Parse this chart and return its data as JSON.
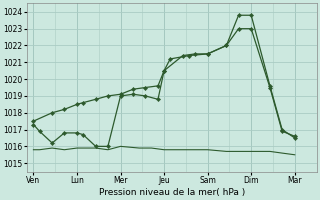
{
  "background_color": "#cce8df",
  "grid_color": "#aaccc4",
  "line_color": "#2d5a2d",
  "title": "Pression niveau de la mer( hPa )",
  "ylim": [
    1014.5,
    1024.5
  ],
  "yticks": [
    1015,
    1016,
    1017,
    1018,
    1019,
    1020,
    1021,
    1022,
    1023,
    1024
  ],
  "x_labels": [
    "Ven",
    "Lun",
    "Mer",
    "Jeu",
    "Sam",
    "Dim",
    "Mar"
  ],
  "x_positions": [
    0,
    1,
    2,
    3,
    4,
    5,
    6
  ],
  "line1_x": [
    0.0,
    0.43,
    0.71,
    1.0,
    1.14,
    1.43,
    1.71,
    2.0,
    2.29,
    2.57,
    2.86,
    3.0,
    3.14,
    3.57,
    4.0,
    4.43,
    4.71,
    5.0,
    5.43,
    5.71,
    6.0
  ],
  "line1_y": [
    1017.5,
    1018.0,
    1018.2,
    1018.5,
    1018.6,
    1018.8,
    1019.0,
    1019.1,
    1019.4,
    1019.5,
    1019.6,
    1020.5,
    1021.2,
    1021.4,
    1021.5,
    1022.0,
    1023.0,
    1023.0,
    1019.5,
    1016.9,
    1016.6
  ],
  "line2_x": [
    0.0,
    0.14,
    0.43,
    0.71,
    1.0,
    1.14,
    1.43,
    1.71,
    2.0,
    2.29,
    2.57,
    2.86,
    3.0,
    3.43,
    3.71,
    4.0,
    4.43,
    4.71,
    5.0,
    5.43,
    5.71,
    6.0
  ],
  "line2_y": [
    1017.3,
    1016.9,
    1016.2,
    1016.8,
    1016.8,
    1016.7,
    1016.0,
    1016.0,
    1019.0,
    1019.1,
    1019.0,
    1018.8,
    1020.5,
    1021.4,
    1021.5,
    1021.5,
    1022.0,
    1023.8,
    1023.8,
    1019.6,
    1017.0,
    1016.5
  ],
  "line3_x": [
    0.0,
    0.14,
    0.43,
    0.71,
    1.0,
    1.43,
    1.71,
    2.0,
    2.43,
    2.71,
    3.0,
    3.43,
    3.71,
    4.0,
    4.43,
    4.71,
    5.0,
    5.43,
    5.71,
    6.0
  ],
  "line3_y": [
    1015.8,
    1015.8,
    1015.9,
    1015.8,
    1015.9,
    1015.9,
    1015.8,
    1016.0,
    1015.9,
    1015.9,
    1015.8,
    1015.8,
    1015.8,
    1015.8,
    1015.7,
    1015.7,
    1015.7,
    1015.7,
    1015.6,
    1015.5
  ],
  "figsize": [
    3.2,
    2.0
  ],
  "dpi": 100
}
